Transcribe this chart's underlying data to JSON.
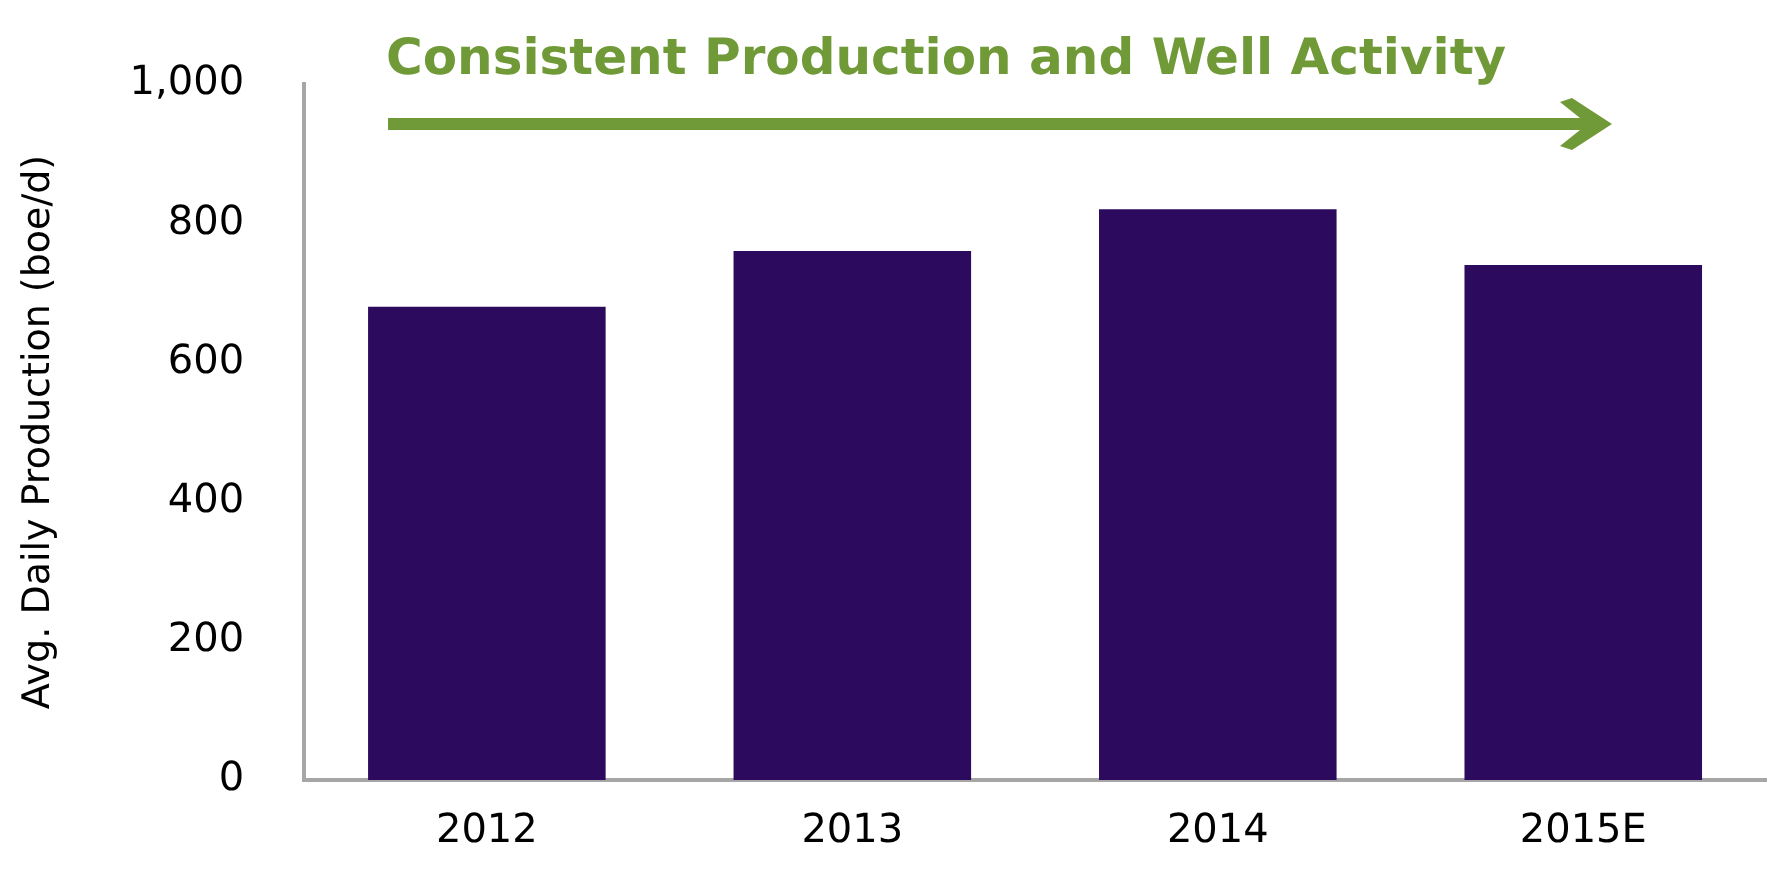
{
  "chart_data": {
    "type": "bar",
    "title": "Consistent Production and Well Activity",
    "ylabel": "Avg. Daily Production (boe/d)",
    "categories": [
      "2012",
      "2013",
      "2014",
      "2015E"
    ],
    "values": [
      680,
      760,
      820,
      740
    ],
    "color": "#2c0a5e",
    "ylim": [
      0,
      1000
    ],
    "yticks": [
      0,
      200,
      400,
      600,
      800,
      {
        "value": 1000,
        "label": "1,000"
      }
    ],
    "grid": false,
    "legend": false
  }
}
